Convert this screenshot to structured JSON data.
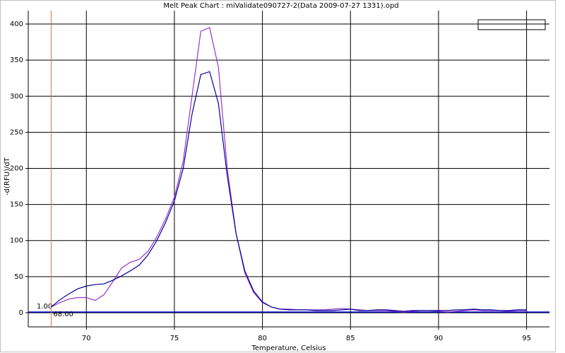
{
  "chart_data": {
    "type": "line",
    "title": "Melt Peak Chart : miValidate090727-2(Data 2009-07-27 1331).opd",
    "x_label": "Temperature, Celsius",
    "y_label": "-d(RFU)/dT",
    "xlim": [
      66.7,
      96.3
    ],
    "ylim": [
      -19.6,
      418.6
    ],
    "xticks": [
      70,
      75,
      80,
      85,
      90,
      95
    ],
    "yticks": [
      0,
      50,
      100,
      150,
      200,
      250,
      300,
      350,
      400
    ],
    "grid": true,
    "threshold": {
      "value": 1,
      "label": "1.00",
      "color": "#0000cc"
    },
    "marker": {
      "value": 68,
      "label": "68.00",
      "color": "#e07040"
    },
    "x": [
      68,
      68.5,
      69,
      69.5,
      70,
      70.5,
      71,
      71.5,
      72,
      72.5,
      73,
      73.5,
      74,
      74.5,
      75,
      75.5,
      76,
      76.5,
      77,
      77.5,
      78,
      78.5,
      79,
      79.5,
      80,
      80.5,
      81,
      81.5,
      82,
      82.5,
      83,
      83.5,
      84,
      84.5,
      85,
      85.5,
      86,
      86.5,
      87,
      87.5,
      88,
      88.5,
      89,
      89.5,
      90,
      90.5,
      91,
      91.5,
      92,
      92.5,
      93,
      93.5,
      94,
      94.5,
      95
    ],
    "series": [
      {
        "color": "#9933cc",
        "values": [
          8,
          14,
          19,
          21,
          21,
          17,
          25,
          43,
          62,
          70,
          74,
          85,
          105,
          130,
          160,
          210,
          300,
          390,
          395,
          340,
          200,
          110,
          55,
          28,
          14,
          8,
          5,
          5,
          4,
          4,
          4,
          4,
          5,
          6,
          5,
          4,
          3,
          3,
          3,
          2,
          1,
          2,
          3,
          3,
          2,
          1,
          2,
          3,
          4,
          3,
          3,
          3,
          2,
          3,
          3
        ]
      },
      {
        "color": "#000099",
        "values": [
          8,
          18,
          26,
          33,
          37,
          39,
          40,
          45,
          51,
          58,
          66,
          80,
          100,
          125,
          155,
          200,
          275,
          330,
          334,
          290,
          190,
          110,
          58,
          30,
          15,
          8,
          5,
          4,
          4,
          4,
          3,
          3,
          3,
          4,
          5,
          3,
          3,
          4,
          4,
          3,
          2,
          3,
          3,
          3,
          3,
          3,
          4,
          4,
          5,
          4,
          4,
          3,
          3,
          4,
          4
        ]
      }
    ]
  }
}
